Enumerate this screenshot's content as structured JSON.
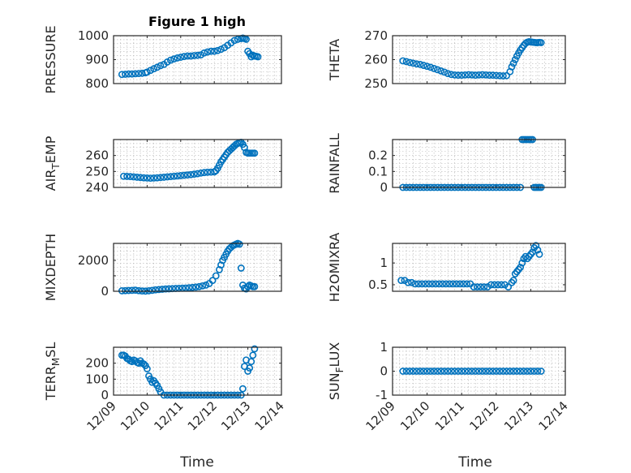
{
  "figure": {
    "title": "Figure 1 high",
    "xlabel": "Time",
    "marker_color": "#0072BD"
  },
  "chart_data": [
    {
      "type": "scatter",
      "title": "Figure 1 high",
      "ylabel": "PRESSURE",
      "ylabel_sub": "",
      "xlabel": "",
      "xlim": [
        0,
        5
      ],
      "ylim": [
        800,
        1000
      ],
      "yticks": [
        {
          "v": 800,
          "label": "800"
        },
        {
          "v": 900,
          "label": "900"
        },
        {
          "v": 1000,
          "label": "1000"
        }
      ],
      "grid": true,
      "series": [
        {
          "x": [
            0.25,
            0.35,
            0.45,
            0.55,
            0.65,
            0.75,
            0.85,
            0.95,
            1.0,
            1.1,
            1.2,
            1.3,
            1.4,
            1.5,
            1.6,
            1.7,
            1.8,
            1.9,
            2.0,
            2.1,
            2.2,
            2.3,
            2.4,
            2.5,
            2.6,
            2.7,
            2.8,
            2.9,
            3.0,
            3.1,
            3.2,
            3.3,
            3.4,
            3.5,
            3.6,
            3.7,
            3.8,
            3.85,
            3.9,
            3.95,
            4.0,
            4.05,
            4.1,
            4.15,
            4.2,
            4.25,
            4.3
          ],
          "y": [
            838,
            839,
            840,
            840,
            841,
            842,
            843,
            845,
            848,
            855,
            862,
            868,
            875,
            880,
            890,
            898,
            903,
            907,
            910,
            913,
            915,
            915,
            917,
            918,
            920,
            928,
            932,
            935,
            935,
            938,
            943,
            950,
            960,
            970,
            980,
            985,
            988,
            990,
            988,
            985,
            935,
            925,
            912,
            918,
            915,
            914,
            912
          ]
        }
      ]
    },
    {
      "type": "scatter",
      "ylabel": "THETA",
      "ylabel_sub": "",
      "xlabel": "",
      "xlim": [
        0,
        5
      ],
      "ylim": [
        250,
        270
      ],
      "yticks": [
        {
          "v": 250,
          "label": "250"
        },
        {
          "v": 260,
          "label": "260"
        },
        {
          "v": 270,
          "label": "270"
        }
      ],
      "grid": true,
      "series": [
        {
          "x": [
            0.3,
            0.4,
            0.5,
            0.6,
            0.7,
            0.8,
            0.9,
            1.0,
            1.1,
            1.2,
            1.3,
            1.4,
            1.5,
            1.6,
            1.7,
            1.8,
            1.9,
            2.0,
            2.1,
            2.2,
            2.3,
            2.4,
            2.5,
            2.6,
            2.7,
            2.8,
            2.9,
            3.0,
            3.1,
            3.2,
            3.3,
            3.4,
            3.45,
            3.5,
            3.55,
            3.6,
            3.65,
            3.7,
            3.75,
            3.8,
            3.85,
            3.9,
            3.95,
            4.0,
            4.05,
            4.1,
            4.15,
            4.2,
            4.25,
            4.3
          ],
          "y": [
            259.5,
            259.2,
            258.8,
            258.5,
            258.2,
            258,
            257.6,
            257.2,
            256.8,
            256.3,
            255.8,
            255.3,
            254.8,
            254.2,
            253.8,
            253.6,
            253.5,
            253.5,
            253.6,
            253.7,
            253.6,
            253.5,
            253.6,
            253.7,
            253.6,
            253.5,
            253.5,
            253.4,
            253.3,
            253.2,
            253.3,
            255,
            257,
            258.5,
            260,
            261.5,
            262.8,
            264,
            265,
            266,
            266.8,
            267.3,
            267.5,
            267.4,
            267.3,
            267.2,
            267.1,
            267.1,
            267.2,
            267.1
          ]
        }
      ]
    },
    {
      "type": "scatter",
      "ylabel": "AIR",
      "ylabel_sub": "T",
      "ylabel_tail": "EMP",
      "xlabel": "",
      "xlim": [
        0,
        5
      ],
      "ylim": [
        240,
        270
      ],
      "yticks": [
        {
          "v": 240,
          "label": "240"
        },
        {
          "v": 250,
          "label": "250"
        },
        {
          "v": 260,
          "label": "260"
        }
      ],
      "grid": true,
      "series": [
        {
          "x": [
            0.3,
            0.4,
            0.5,
            0.6,
            0.7,
            0.8,
            0.9,
            1.0,
            1.1,
            1.2,
            1.3,
            1.4,
            1.5,
            1.6,
            1.7,
            1.8,
            1.9,
            2.0,
            2.1,
            2.2,
            2.3,
            2.4,
            2.5,
            2.6,
            2.7,
            2.8,
            2.9,
            3.0,
            3.05,
            3.1,
            3.15,
            3.2,
            3.25,
            3.3,
            3.35,
            3.4,
            3.45,
            3.5,
            3.55,
            3.6,
            3.65,
            3.7,
            3.75,
            3.8,
            3.85,
            3.9,
            3.95,
            4.0,
            4.05,
            4.1,
            4.15,
            4.2
          ],
          "y": [
            247,
            246.9,
            246.8,
            246.6,
            246.4,
            246.2,
            246,
            245.9,
            245.8,
            245.9,
            246,
            246.2,
            246.4,
            246.6,
            246.8,
            247,
            247.2,
            247.4,
            247.6,
            247.8,
            248,
            248.3,
            248.6,
            249,
            249.3,
            249.5,
            249.6,
            249.7,
            250.5,
            252,
            254,
            256,
            257.5,
            259,
            260.5,
            262,
            263,
            264,
            265,
            266,
            267,
            267.6,
            268,
            268.3,
            267,
            265,
            262,
            261.5,
            261.5,
            261.5,
            261.5,
            261.5
          ]
        }
      ]
    },
    {
      "type": "scatter",
      "ylabel": "RAINFALL",
      "ylabel_sub": "",
      "xlabel": "",
      "xlim": [
        0,
        5
      ],
      "ylim": [
        0,
        0.3
      ],
      "yticks": [
        {
          "v": 0,
          "label": "0"
        },
        {
          "v": 0.1,
          "label": "0.1"
        },
        {
          "v": 0.2,
          "label": "0.2"
        }
      ],
      "grid": true,
      "series": [
        {
          "x": [
            0.3,
            0.4,
            0.5,
            0.6,
            0.7,
            0.8,
            0.9,
            1.0,
            1.1,
            1.2,
            1.3,
            1.4,
            1.5,
            1.6,
            1.7,
            1.8,
            1.9,
            2.0,
            2.1,
            2.2,
            2.3,
            2.4,
            2.5,
            2.6,
            2.7,
            2.8,
            2.9,
            3.0,
            3.1,
            3.2,
            3.3,
            3.4,
            3.5,
            3.6,
            3.7,
            3.75,
            3.8,
            3.85,
            3.9,
            3.95,
            4.0,
            4.05,
            4.1,
            4.15,
            4.2,
            4.25,
            4.3
          ],
          "y": [
            0,
            0,
            0,
            0,
            0,
            0,
            0,
            0,
            0,
            0,
            0,
            0,
            0,
            0,
            0,
            0,
            0,
            0,
            0,
            0,
            0,
            0,
            0,
            0,
            0,
            0,
            0,
            0,
            0,
            0,
            0,
            0,
            0,
            0,
            0,
            0.3,
            0.3,
            0.3,
            0.3,
            0.3,
            0.3,
            0.3,
            0,
            0,
            0,
            0,
            0
          ]
        }
      ]
    },
    {
      "type": "scatter",
      "ylabel": "MIXDEPTH",
      "ylabel_sub": "",
      "xlabel": "",
      "xlim": [
        0,
        5
      ],
      "ylim": [
        0,
        3100
      ],
      "yticks": [
        {
          "v": 0,
          "label": "0"
        },
        {
          "v": 1000,
          "label": ""
        },
        {
          "v": 2000,
          "label": "2000"
        }
      ],
      "grid": true,
      "series": [
        {
          "x": [
            0.25,
            0.35,
            0.45,
            0.55,
            0.65,
            0.75,
            0.85,
            0.95,
            1.05,
            1.15,
            1.25,
            1.35,
            1.45,
            1.55,
            1.65,
            1.75,
            1.85,
            1.95,
            2.05,
            2.15,
            2.25,
            2.35,
            2.45,
            2.55,
            2.65,
            2.75,
            2.85,
            2.95,
            3.05,
            3.15,
            3.2,
            3.25,
            3.3,
            3.35,
            3.4,
            3.45,
            3.5,
            3.55,
            3.6,
            3.65,
            3.7,
            3.75,
            3.8,
            3.85,
            3.9,
            3.95,
            4.0,
            4.05,
            4.1,
            4.15,
            4.2
          ],
          "y": [
            30,
            40,
            50,
            60,
            70,
            40,
            20,
            10,
            30,
            60,
            90,
            110,
            130,
            150,
            160,
            170,
            180,
            190,
            200,
            210,
            230,
            250,
            270,
            300,
            350,
            400,
            500,
            700,
            1000,
            1400,
            1700,
            2000,
            2200,
            2400,
            2600,
            2750,
            2850,
            2950,
            3000,
            3050,
            3100,
            3050,
            1500,
            400,
            200,
            150,
            300,
            400,
            350,
            300,
            300
          ]
        }
      ]
    },
    {
      "type": "scatter",
      "ylabel": "H2OMIXRA",
      "ylabel_sub": "",
      "xlabel": "",
      "xlim": [
        0,
        5
      ],
      "ylim": [
        0.35,
        1.45
      ],
      "yticks": [
        {
          "v": 0.5,
          "label": "0.5"
        },
        {
          "v": 1,
          "label": "1"
        }
      ],
      "grid": true,
      "series": [
        {
          "x": [
            0.25,
            0.35,
            0.45,
            0.55,
            0.65,
            0.75,
            0.85,
            0.95,
            1.05,
            1.15,
            1.25,
            1.35,
            1.45,
            1.55,
            1.65,
            1.75,
            1.85,
            1.95,
            2.05,
            2.15,
            2.25,
            2.35,
            2.45,
            2.55,
            2.65,
            2.75,
            2.85,
            2.95,
            3.05,
            3.15,
            3.25,
            3.35,
            3.45,
            3.5,
            3.55,
            3.6,
            3.65,
            3.7,
            3.75,
            3.8,
            3.85,
            3.9,
            3.95,
            4.0,
            4.05,
            4.1,
            4.15,
            4.2,
            4.25
          ],
          "y": [
            0.6,
            0.6,
            0.55,
            0.55,
            0.52,
            0.52,
            0.52,
            0.52,
            0.52,
            0.52,
            0.52,
            0.52,
            0.52,
            0.52,
            0.52,
            0.52,
            0.52,
            0.52,
            0.52,
            0.52,
            0.52,
            0.45,
            0.45,
            0.45,
            0.45,
            0.45,
            0.5,
            0.5,
            0.5,
            0.5,
            0.5,
            0.45,
            0.55,
            0.6,
            0.75,
            0.8,
            0.85,
            0.9,
            1.0,
            1.1,
            1.15,
            1.1,
            1.15,
            1.2,
            1.25,
            1.35,
            1.4,
            1.3,
            1.2
          ]
        }
      ]
    },
    {
      "type": "scatter",
      "ylabel": "TERR",
      "ylabel_sub": "M",
      "ylabel_tail": "SL",
      "xlabel": "",
      "xlim": [
        0,
        5
      ],
      "xticks": [
        {
          "v": 0,
          "label": "12/09"
        },
        {
          "v": 1,
          "label": "12/10"
        },
        {
          "v": 2,
          "label": "12/11"
        },
        {
          "v": 3,
          "label": "12/12"
        },
        {
          "v": 4,
          "label": "12/13"
        },
        {
          "v": 5,
          "label": "12/14"
        }
      ],
      "ylim": [
        0,
        300
      ],
      "yticks": [
        {
          "v": 0,
          "label": "0"
        },
        {
          "v": 100,
          "label": "100"
        },
        {
          "v": 200,
          "label": "200"
        }
      ],
      "grid": true,
      "series": [
        {
          "x": [
            0.25,
            0.3,
            0.35,
            0.4,
            0.45,
            0.5,
            0.55,
            0.6,
            0.65,
            0.7,
            0.75,
            0.8,
            0.85,
            0.9,
            0.95,
            1.0,
            1.05,
            1.1,
            1.15,
            1.2,
            1.25,
            1.3,
            1.35,
            1.4,
            1.5,
            1.6,
            1.7,
            1.8,
            1.9,
            2.0,
            2.1,
            2.2,
            2.3,
            2.4,
            2.5,
            2.6,
            2.7,
            2.8,
            2.9,
            3.0,
            3.1,
            3.2,
            3.3,
            3.4,
            3.5,
            3.6,
            3.7,
            3.8,
            3.85,
            3.9,
            3.95,
            4.0,
            4.05,
            4.1,
            4.15,
            4.2
          ],
          "y": [
            250,
            250,
            245,
            230,
            225,
            215,
            210,
            220,
            215,
            205,
            200,
            215,
            200,
            195,
            185,
            165,
            120,
            100,
            80,
            90,
            75,
            60,
            40,
            20,
            0,
            0,
            0,
            0,
            0,
            0,
            0,
            0,
            0,
            0,
            0,
            0,
            0,
            0,
            0,
            0,
            0,
            0,
            0,
            0,
            0,
            0,
            0,
            0,
            40,
            180,
            220,
            150,
            170,
            210,
            250,
            290
          ]
        }
      ]
    },
    {
      "type": "scatter",
      "ylabel": "SUN",
      "ylabel_sub": "F",
      "ylabel_tail": "LUX",
      "xlabel": "",
      "xlim": [
        0,
        5
      ],
      "xticks": [
        {
          "v": 0,
          "label": "12/09"
        },
        {
          "v": 1,
          "label": "12/10"
        },
        {
          "v": 2,
          "label": "12/11"
        },
        {
          "v": 3,
          "label": "12/12"
        },
        {
          "v": 4,
          "label": "12/13"
        },
        {
          "v": 5,
          "label": "12/14"
        }
      ],
      "ylim": [
        -1,
        1
      ],
      "yticks": [
        {
          "v": -1,
          "label": "-1"
        },
        {
          "v": 0,
          "label": "0"
        },
        {
          "v": 1,
          "label": "1"
        }
      ],
      "grid": true,
      "series": [
        {
          "x": [
            0.3,
            0.4,
            0.5,
            0.6,
            0.7,
            0.8,
            0.9,
            1.0,
            1.1,
            1.2,
            1.3,
            1.4,
            1.5,
            1.6,
            1.7,
            1.8,
            1.9,
            2.0,
            2.1,
            2.2,
            2.3,
            2.4,
            2.5,
            2.6,
            2.7,
            2.8,
            2.9,
            3.0,
            3.1,
            3.2,
            3.3,
            3.4,
            3.5,
            3.6,
            3.7,
            3.8,
            3.9,
            4.0,
            4.1,
            4.2,
            4.3
          ],
          "y": [
            0,
            0,
            0,
            0,
            0,
            0,
            0,
            0,
            0,
            0,
            0,
            0,
            0,
            0,
            0,
            0,
            0,
            0,
            0,
            0,
            0,
            0,
            0,
            0,
            0,
            0,
            0,
            0,
            0,
            0,
            0,
            0,
            0,
            0,
            0,
            0,
            0,
            0,
            0,
            0,
            0
          ]
        }
      ]
    }
  ]
}
